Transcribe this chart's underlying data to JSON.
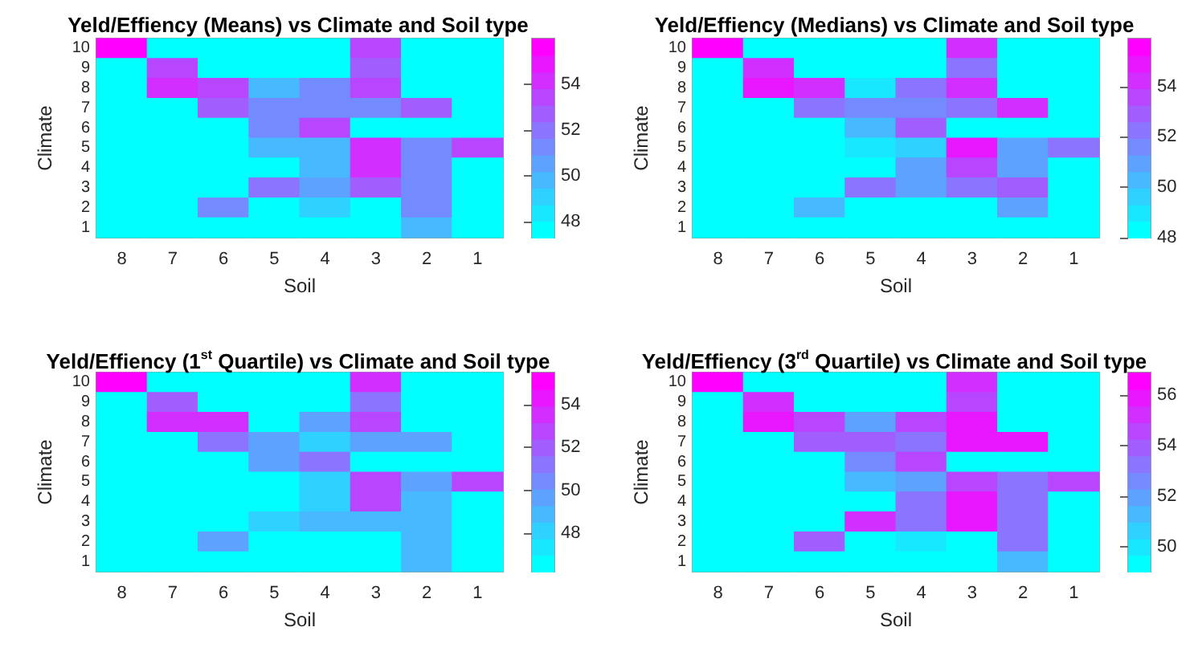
{
  "chart_data": [
    {
      "type": "heatmap",
      "title": "Yeld/Effiency (Means) vs Climate and Soil type",
      "xlabel": "Soil",
      "ylabel": "Climate",
      "categories": [
        "8",
        "7",
        "6",
        "5",
        "4",
        "3",
        "2",
        "1"
      ],
      "y_categories": [
        "10",
        "9",
        "8",
        "7",
        "6",
        "5",
        "4",
        "3",
        "2",
        "1"
      ],
      "clim": [
        47.3,
        56
      ],
      "cticks": [
        48,
        50,
        52,
        54
      ],
      "cells": [
        [
          55.6,
          47.5,
          47.5,
          47.5,
          47.5,
          53.8,
          47.5,
          47.5
        ],
        [
          47.5,
          53.2,
          47.5,
          47.5,
          47.5,
          52.5,
          47.5,
          47.5
        ],
        [
          47.5,
          54.2,
          53.5,
          49.5,
          51.5,
          53.8,
          47.5,
          47.5
        ],
        [
          47.5,
          47.5,
          52.5,
          51.5,
          51.5,
          51.5,
          52.8,
          47.5
        ],
        [
          47.5,
          47.5,
          47.5,
          51.5,
          53.8,
          47.5,
          47.5,
          47.5
        ],
        [
          47.5,
          47.5,
          47.5,
          49.8,
          49.8,
          54,
          51,
          53.8
        ],
        [
          47.5,
          47.5,
          47.5,
          47.5,
          49.8,
          54,
          51,
          47.5
        ],
        [
          47.5,
          47.5,
          47.5,
          51.8,
          50.7,
          53,
          51,
          47.5
        ],
        [
          47.5,
          47.5,
          51.5,
          47.5,
          49,
          47.5,
          51,
          47.5
        ],
        [
          47.5,
          47.5,
          47.5,
          47.5,
          47.5,
          47.5,
          50,
          47.5
        ]
      ]
    },
    {
      "type": "heatmap",
      "title": "Yeld/Effiency (Medians) vs Climate and Soil type",
      "xlabel": "Soil",
      "ylabel": "Climate",
      "categories": [
        "8",
        "7",
        "6",
        "5",
        "4",
        "3",
        "2",
        "1"
      ],
      "y_categories": [
        "10",
        "9",
        "8",
        "7",
        "6",
        "5",
        "4",
        "3",
        "2",
        "1"
      ],
      "clim": [
        48,
        55.9
      ],
      "cticks": [
        48,
        50,
        52,
        54
      ],
      "cells": [
        [
          55.6,
          48.2,
          48.2,
          48.2,
          48.2,
          54,
          48.2,
          48.2
        ],
        [
          48.2,
          54,
          48.2,
          48.2,
          48.2,
          52.5,
          48.2,
          48.2
        ],
        [
          48.2,
          54.8,
          54.3,
          49,
          52.5,
          54,
          48.2,
          48.2
        ],
        [
          48.2,
          48.2,
          52.5,
          51.5,
          51.5,
          52.5,
          54,
          48.2
        ],
        [
          48.2,
          48.2,
          48.2,
          50,
          52.8,
          48.2,
          48.2,
          48.2
        ],
        [
          48.2,
          48.2,
          48.2,
          49.3,
          49.8,
          55,
          51,
          52.5
        ],
        [
          48.2,
          48.2,
          48.2,
          48.2,
          50.8,
          53.8,
          51,
          48.2
        ],
        [
          48.2,
          48.2,
          48.2,
          52,
          50.8,
          52.5,
          53,
          48.2
        ],
        [
          48.2,
          48.2,
          50.5,
          48.2,
          48.2,
          48.2,
          50.8,
          48.2
        ],
        [
          48.2,
          48.2,
          48.2,
          48.2,
          48.2,
          48.2,
          48.2,
          48.2
        ]
      ]
    },
    {
      "type": "heatmap",
      "title": "Yeld/Effiency (1$^{st}$ Quartile) vs Climate and Soil type",
      "xlabel": "Soil",
      "ylabel": "Climate",
      "categories": [
        "8",
        "7",
        "6",
        "5",
        "4",
        "3",
        "2",
        "1"
      ],
      "y_categories": [
        "10",
        "9",
        "8",
        "7",
        "6",
        "5",
        "4",
        "3",
        "2",
        "1"
      ],
      "clim": [
        46.2,
        55.5
      ],
      "cticks": [
        48,
        50,
        52,
        54
      ],
      "cells": [
        [
          55.2,
          46.5,
          46.5,
          46.5,
          46.5,
          53.5,
          46.5,
          46.5
        ],
        [
          46.5,
          52,
          46.5,
          46.5,
          46.5,
          51,
          46.5,
          46.5
        ],
        [
          46.5,
          53.3,
          53.3,
          46.5,
          49.8,
          52.5,
          46.5,
          46.5
        ],
        [
          46.5,
          46.5,
          51,
          49.8,
          48.5,
          49.8,
          49.8,
          46.5
        ],
        [
          46.5,
          46.5,
          46.5,
          49.8,
          51.3,
          46.5,
          46.5,
          46.5
        ],
        [
          46.5,
          46.5,
          46.5,
          46.5,
          48.3,
          53,
          50,
          52.5
        ],
        [
          46.5,
          46.5,
          46.5,
          46.5,
          48.3,
          53,
          48.8,
          46.5
        ],
        [
          46.5,
          46.5,
          46.5,
          47.8,
          49,
          49,
          48.8,
          46.5
        ],
        [
          46.5,
          46.5,
          49.8,
          46.5,
          46.5,
          46.5,
          49.3,
          46.5
        ],
        [
          46.5,
          46.5,
          46.5,
          46.5,
          46.5,
          46.5,
          49.3,
          46.5
        ]
      ]
    },
    {
      "type": "heatmap",
      "title": "Yeld/Effiency (3$^{rd}$ Quartile) vs Climate and Soil type",
      "xlabel": "Soil",
      "ylabel": "Climate",
      "categories": [
        "8",
        "7",
        "6",
        "5",
        "4",
        "3",
        "2",
        "1"
      ],
      "y_categories": [
        "10",
        "9",
        "8",
        "7",
        "6",
        "5",
        "4",
        "3",
        "2",
        "1"
      ],
      "clim": [
        49,
        56.9
      ],
      "cticks": [
        50,
        52,
        54,
        56
      ],
      "cells": [
        [
          56.6,
          49.2,
          49.2,
          49.2,
          49.2,
          55.3,
          49.2,
          49.2
        ],
        [
          49.2,
          55.3,
          49.2,
          49.2,
          49.2,
          54.5,
          49.2,
          49.2
        ],
        [
          49.2,
          55.8,
          54.3,
          52,
          54.8,
          55.8,
          49.2,
          49.2
        ],
        [
          49.2,
          49.2,
          53.8,
          53.8,
          53.5,
          55.8,
          55.8,
          49.2
        ],
        [
          49.2,
          49.2,
          49.2,
          52.8,
          54.8,
          49.2,
          49.2,
          49.2
        ],
        [
          49.2,
          49.2,
          49.2,
          51.3,
          52,
          54.8,
          53,
          54.8
        ],
        [
          49.2,
          49.2,
          49.2,
          49.2,
          53,
          55.8,
          53,
          49.2
        ],
        [
          49.2,
          49.2,
          49.2,
          55.3,
          53,
          55.8,
          53,
          49.2
        ],
        [
          49.2,
          49.2,
          54,
          49.2,
          50.3,
          49.2,
          53,
          49.2
        ],
        [
          49.2,
          49.2,
          49.2,
          49.2,
          49.2,
          49.2,
          51.3,
          49.2
        ]
      ]
    }
  ]
}
